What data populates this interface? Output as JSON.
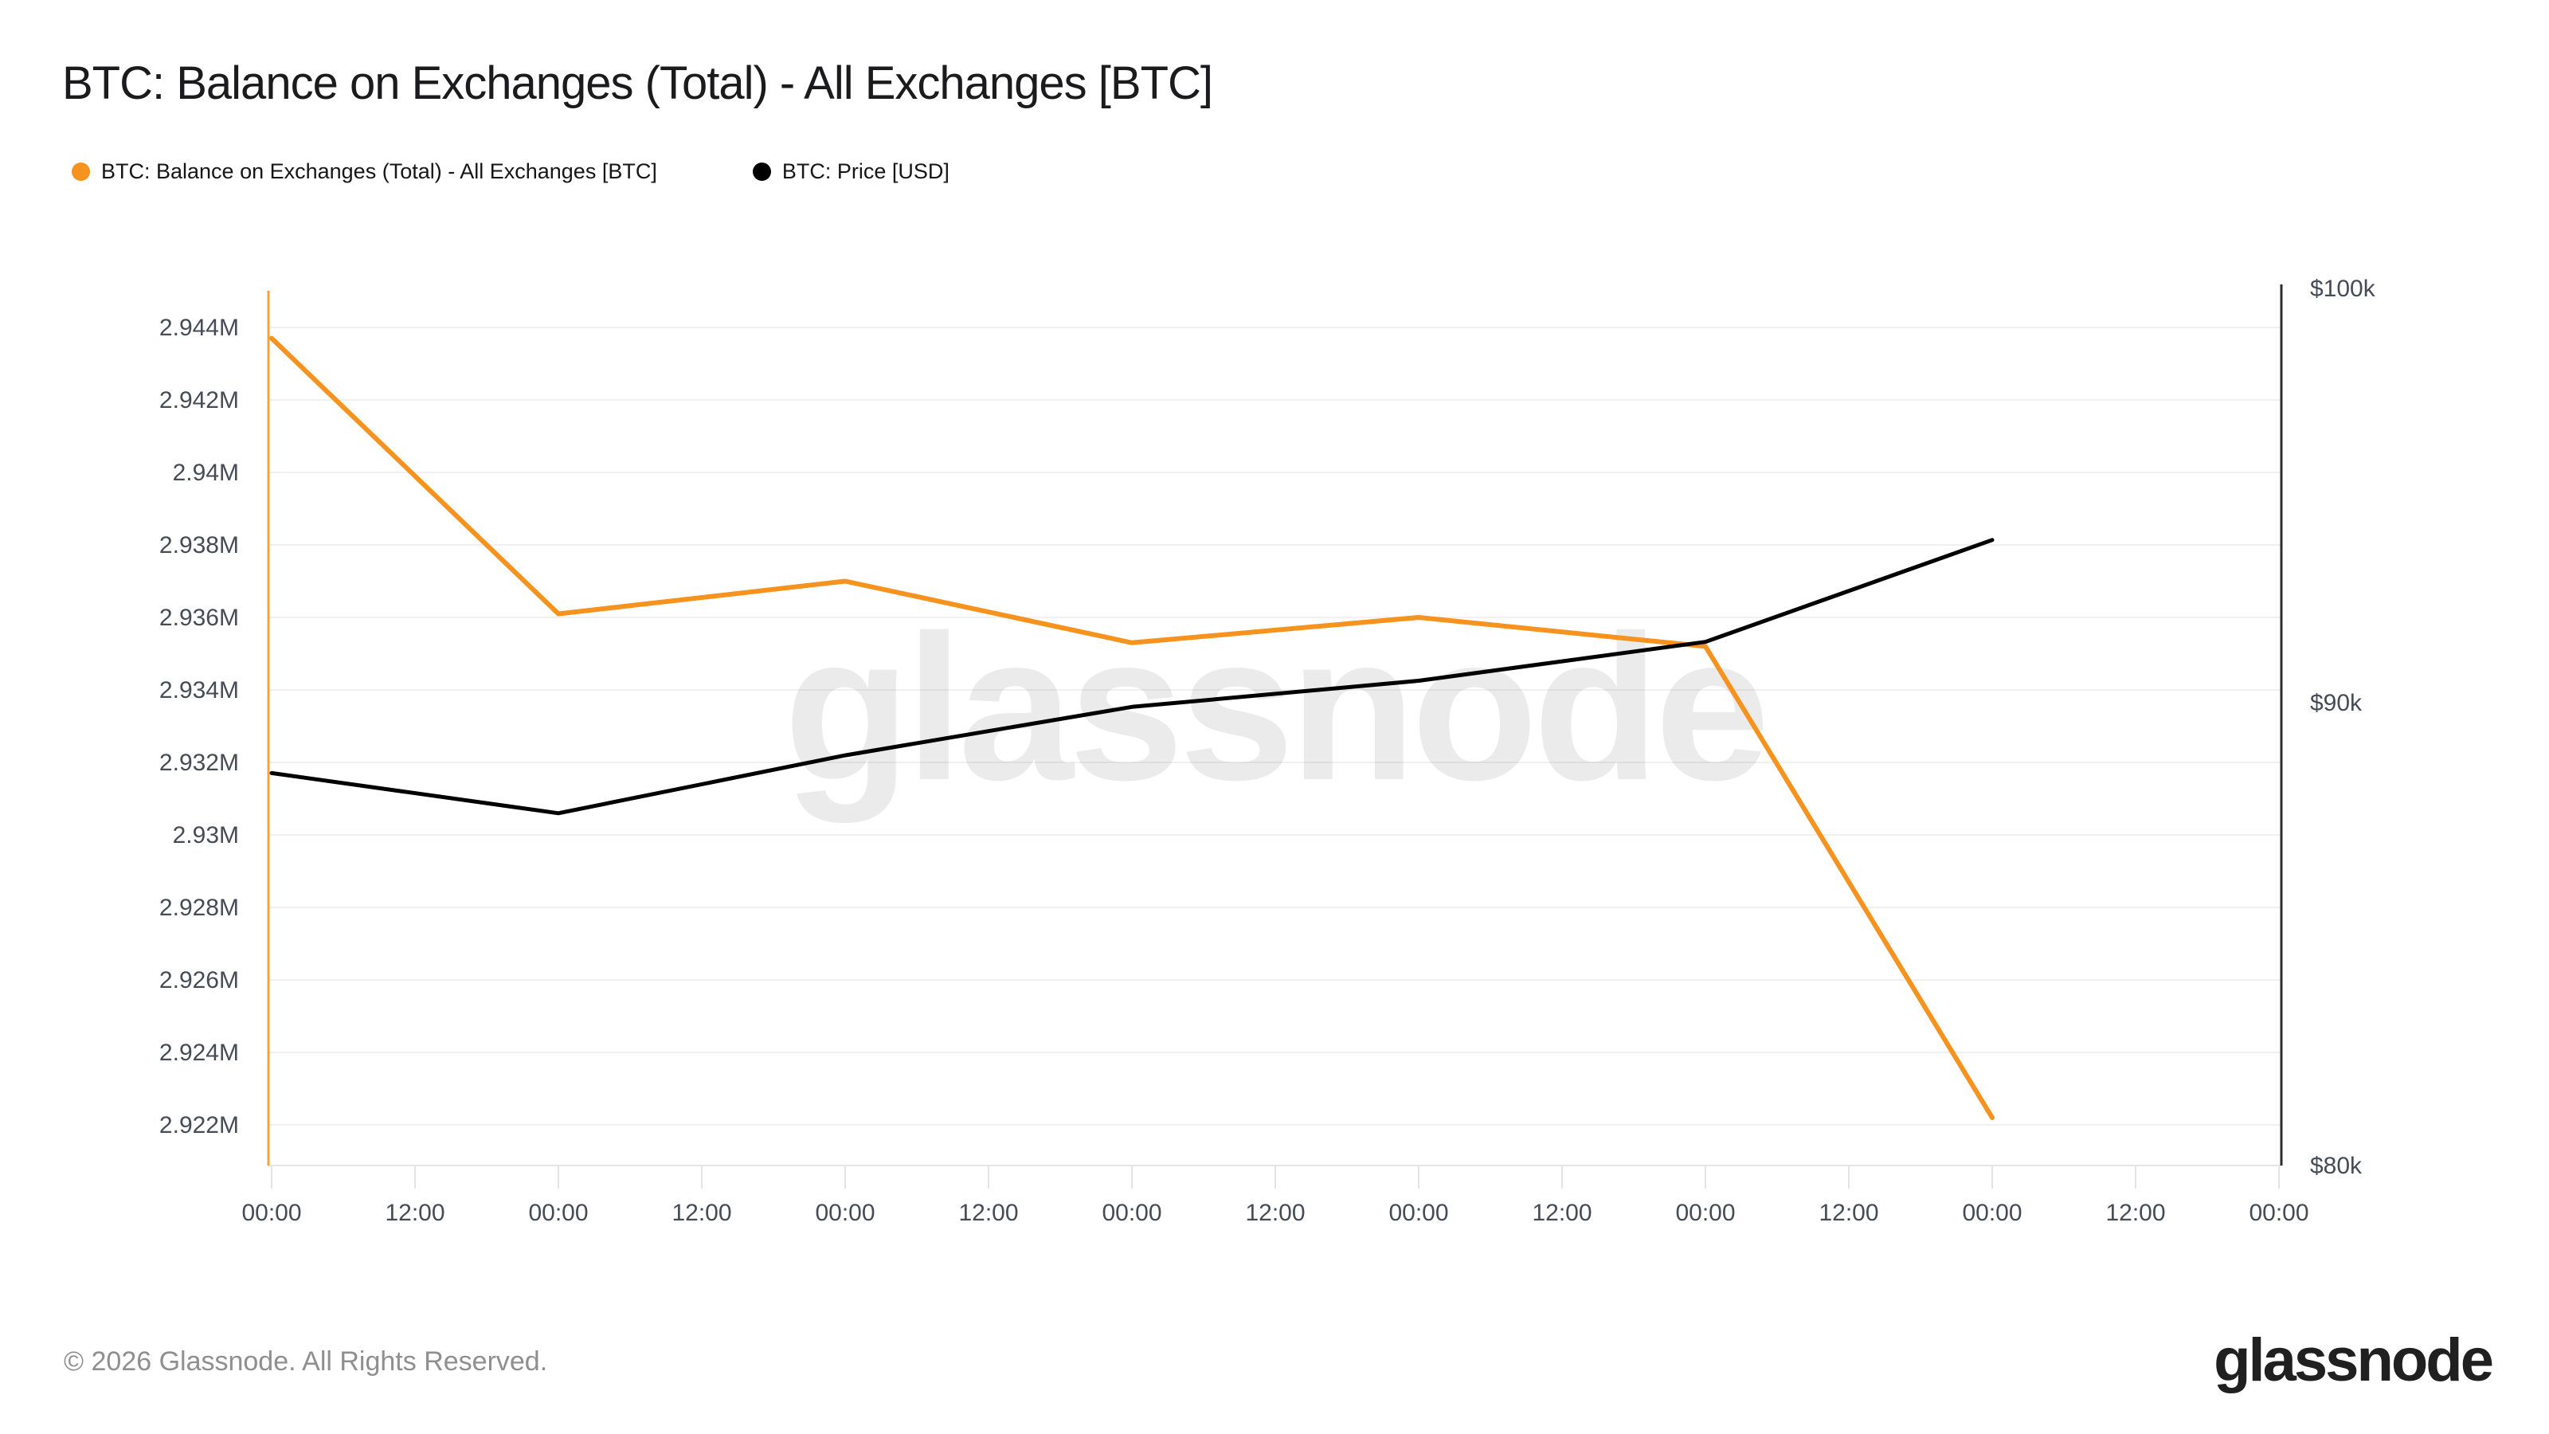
{
  "title": "BTC: Balance on Exchanges (Total) - All Exchanges [BTC]",
  "legend": [
    {
      "label": "BTC: Balance on Exchanges (Total) - All Exchanges [BTC]",
      "color": "#f6921e"
    },
    {
      "label": "BTC: Price [USD]",
      "color": "#000000"
    }
  ],
  "watermark": "glassnode",
  "footer": {
    "copyright": "© 2026 Glassnode. All Rights Reserved.",
    "logo": "glassnode"
  },
  "chart_data": {
    "type": "line",
    "title": "BTC: Balance on Exchanges (Total) - All Exchanges [BTC]",
    "legend_position": "top-left",
    "grid": "horizontal",
    "x_axis": {
      "tick_labels": [
        "00:00",
        "12:00",
        "00:00",
        "12:00",
        "00:00",
        "12:00",
        "00:00",
        "12:00",
        "00:00",
        "12:00",
        "00:00",
        "12:00",
        "00:00",
        "12:00",
        "00:00"
      ],
      "description": "ticks every 12 hours across 7 days; data points daily at 00:00"
    },
    "left_axis": {
      "title": "BTC: Balance on Exchanges (Total) - All Exchanges [BTC]",
      "unit": "BTC",
      "tick_labels": [
        "2.944M",
        "2.942M",
        "2.94M",
        "2.938M",
        "2.936M",
        "2.934M",
        "2.932M",
        "2.93M",
        "2.928M",
        "2.926M",
        "2.924M",
        "2.922M"
      ],
      "tick_values": [
        2944000,
        2942000,
        2940000,
        2938000,
        2936000,
        2934000,
        2932000,
        2930000,
        2928000,
        2926000,
        2924000,
        2922000
      ]
    },
    "right_axis": {
      "title": "BTC: Price [USD]",
      "unit": "USD",
      "scale": "log",
      "tick_labels": [
        "$100k",
        "$90k",
        "$80k"
      ],
      "tick_values": [
        100000,
        90000,
        80000
      ]
    },
    "series": [
      {
        "id": "balance",
        "name": "BTC: Balance on Exchanges (Total) - All Exchanges [BTC]",
        "color": "#f6921e",
        "axis": "left",
        "stroke_width": 6,
        "x_tick_indices": [
          0,
          2,
          4,
          6,
          8,
          10,
          12
        ],
        "values": [
          2943700,
          2936100,
          2937000,
          2935300,
          2936000,
          2935200,
          2922200
        ]
      },
      {
        "id": "price",
        "name": "BTC: Price [USD]",
        "color": "#000000",
        "axis": "right",
        "stroke_width": 5,
        "x_tick_indices": [
          0,
          2,
          4,
          6,
          8,
          10,
          12
        ],
        "values": [
          88400,
          87500,
          88800,
          89900,
          90500,
          91400,
          93800
        ]
      }
    ],
    "colors": {
      "grid": "#f0f0f0",
      "axis_labels": "#454c55",
      "left_axis_line": "#f5a243",
      "right_axis_line": "#2b2d31",
      "bottom_axis_line": "#e6e6e6",
      "tick": "#e3e3e3"
    }
  }
}
